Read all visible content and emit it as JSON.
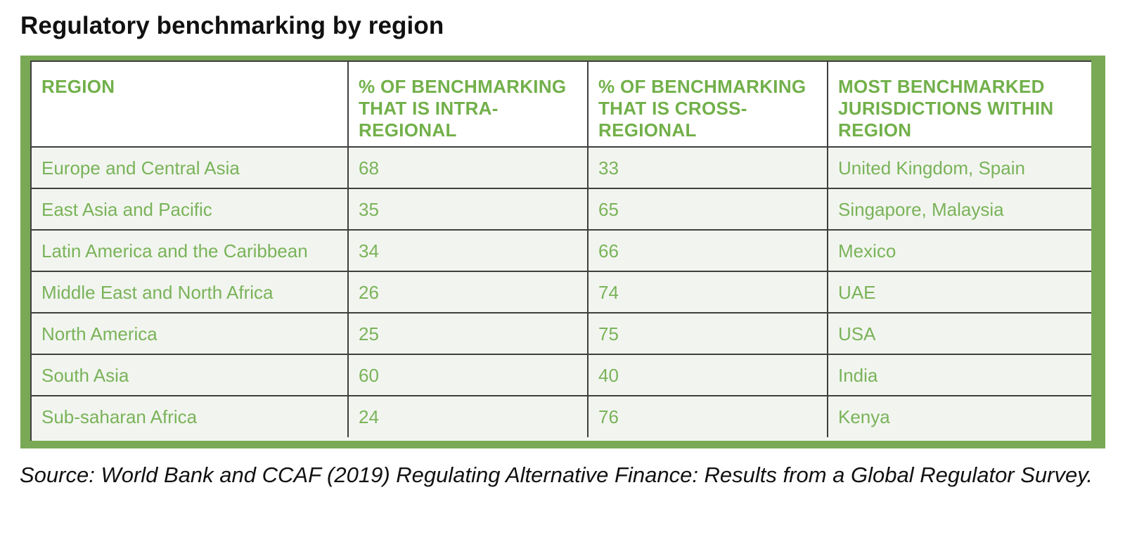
{
  "title": "Regulatory benchmarking by region",
  "table": {
    "headers": [
      "REGION",
      "% OF BENCHMARKING THAT IS INTRA-REGIONAL",
      "% OF BENCHMARKING THAT IS CROSS-REGIONAL",
      "MOST BENCHMARKED JURISDICTIONS WITHIN REGION"
    ],
    "rows": [
      [
        "Europe and Central Asia",
        "68",
        "33",
        "United Kingdom, Spain"
      ],
      [
        "East Asia and Pacific",
        "35",
        "65",
        "Singapore, Malaysia"
      ],
      [
        "Latin America and the Caribbean",
        "34",
        "66",
        "Mexico"
      ],
      [
        "Middle East and North Africa",
        "26",
        "74",
        "UAE"
      ],
      [
        "North America",
        "25",
        "75",
        "USA"
      ],
      [
        "South Asia",
        "60",
        "40",
        "India"
      ],
      [
        "Sub-saharan Africa",
        "24",
        "76",
        "Kenya"
      ]
    ]
  },
  "source": "Source: World Bank and CCAF (2019) Regulating Alternative Finance: Results from a Global Regulator Survey.",
  "colors": {
    "frame_green": "#7aa955",
    "header_text_green": "#72b04a",
    "cell_text_green": "#7ab35a",
    "cell_background": "#f2f5ef",
    "grid_lines": "#3f3f3f"
  }
}
